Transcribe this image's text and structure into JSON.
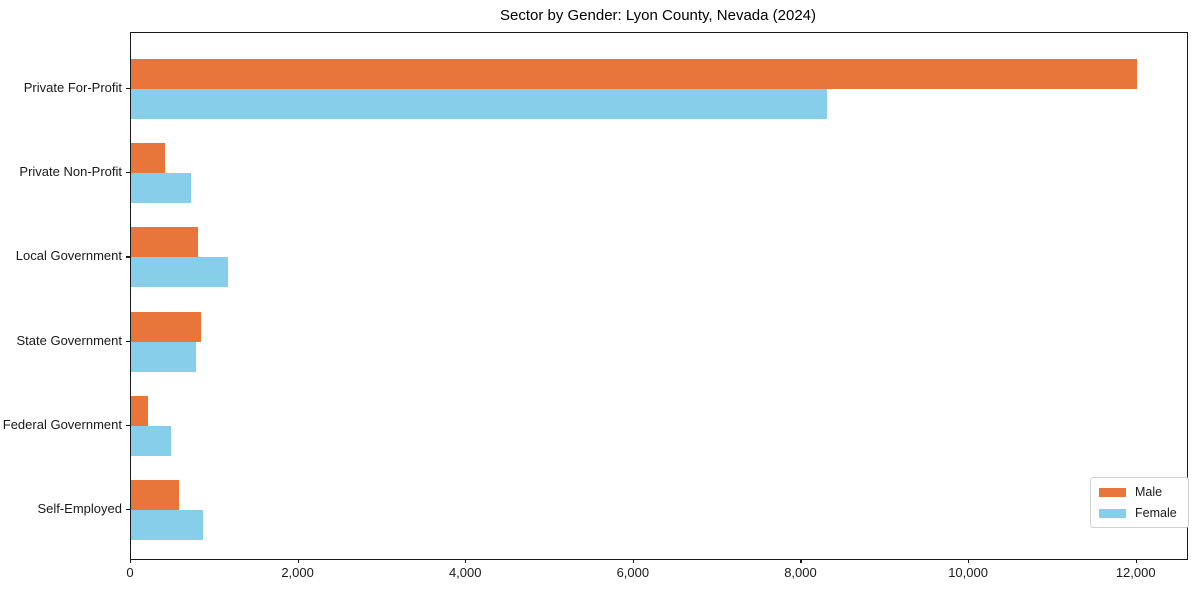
{
  "chart_data": {
    "type": "bar",
    "orientation": "horizontal",
    "title": "Sector by Gender: Lyon County, Nevada (2024)",
    "xlabel": "",
    "ylabel": "",
    "categories": [
      "Private For-Profit",
      "Private Non-Profit",
      "Local Government",
      "State Government",
      "Federal Government",
      "Self-Employed"
    ],
    "series": [
      {
        "name": "Male",
        "color": "#e8763b",
        "values": [
          12000,
          400,
          800,
          840,
          200,
          570
        ]
      },
      {
        "name": "Female",
        "color": "#87ceeb",
        "values": [
          8300,
          710,
          1160,
          775,
          480,
          860
        ]
      }
    ],
    "xlim": [
      0,
      12600
    ],
    "x_ticks": [
      0,
      2000,
      4000,
      6000,
      8000,
      10000,
      12000
    ],
    "x_tick_labels": [
      "0",
      "2,000",
      "4,000",
      "6,000",
      "8,000",
      "10,000",
      "12,000"
    ],
    "grid": false,
    "legend": {
      "position": "lower right",
      "entries": [
        "Male",
        "Female"
      ]
    }
  }
}
